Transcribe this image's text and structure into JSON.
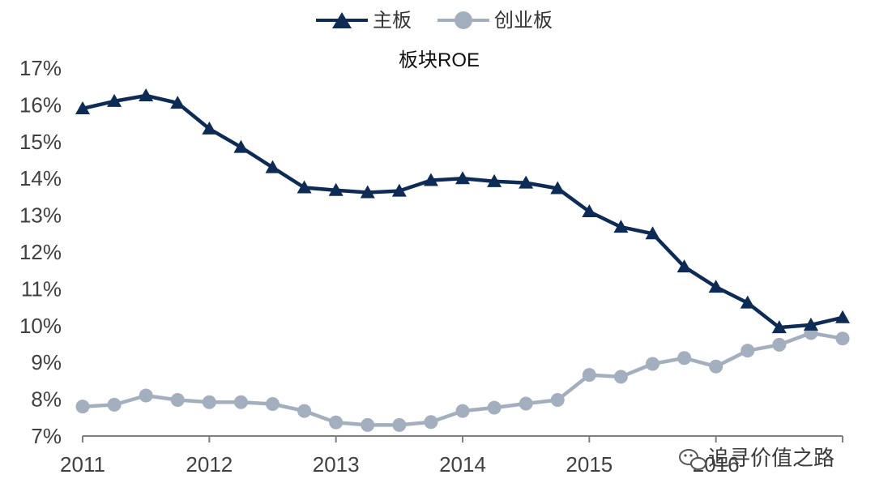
{
  "chart_data": {
    "type": "line",
    "title": "板块ROE",
    "xlabel": "",
    "ylabel": "",
    "x_ticks": [
      "2011",
      "2012",
      "2013",
      "2014",
      "2015",
      "2016"
    ],
    "y_ticks": [
      "7%",
      "8%",
      "9%",
      "10%",
      "11%",
      "12%",
      "13%",
      "14%",
      "15%",
      "16%",
      "17%"
    ],
    "ylim": [
      7,
      17
    ],
    "xlim": [
      2011.0,
      2017.0
    ],
    "legend_position": "top-center",
    "grid": false,
    "series": [
      {
        "name": "主板",
        "color": "#0d2b55",
        "marker": "triangle",
        "points": [
          [
            2011.0,
            15.9
          ],
          [
            2011.25,
            16.1
          ],
          [
            2011.5,
            16.25
          ],
          [
            2011.75,
            16.05
          ],
          [
            2012.0,
            15.35
          ],
          [
            2012.25,
            14.85
          ],
          [
            2012.5,
            14.3
          ],
          [
            2012.75,
            13.75
          ],
          [
            2013.0,
            13.68
          ],
          [
            2013.25,
            13.62
          ],
          [
            2013.5,
            13.66
          ],
          [
            2013.75,
            13.95
          ],
          [
            2014.0,
            14.0
          ],
          [
            2014.25,
            13.92
          ],
          [
            2014.5,
            13.88
          ],
          [
            2014.75,
            13.73
          ],
          [
            2015.0,
            13.1
          ],
          [
            2015.25,
            12.68
          ],
          [
            2015.5,
            12.5
          ],
          [
            2015.75,
            11.6
          ],
          [
            2016.0,
            11.05
          ],
          [
            2016.25,
            10.62
          ],
          [
            2016.5,
            9.95
          ],
          [
            2016.75,
            10.02
          ],
          [
            2017.0,
            10.22
          ]
        ]
      },
      {
        "name": "创业板",
        "color": "#a3afbe",
        "marker": "circle",
        "points": [
          [
            2011.0,
            7.8
          ],
          [
            2011.25,
            7.85
          ],
          [
            2011.5,
            8.1
          ],
          [
            2011.75,
            7.98
          ],
          [
            2012.0,
            7.92
          ],
          [
            2012.25,
            7.92
          ],
          [
            2012.5,
            7.87
          ],
          [
            2012.75,
            7.68
          ],
          [
            2013.0,
            7.37
          ],
          [
            2013.25,
            7.3
          ],
          [
            2013.5,
            7.3
          ],
          [
            2013.75,
            7.38
          ],
          [
            2014.0,
            7.68
          ],
          [
            2014.25,
            7.77
          ],
          [
            2014.5,
            7.88
          ],
          [
            2014.75,
            7.98
          ],
          [
            2015.0,
            8.66
          ],
          [
            2015.25,
            8.61
          ],
          [
            2015.5,
            8.96
          ],
          [
            2015.75,
            9.12
          ],
          [
            2016.0,
            8.89
          ],
          [
            2016.25,
            9.32
          ],
          [
            2016.5,
            9.48
          ],
          [
            2016.75,
            9.8
          ],
          [
            2017.0,
            9.65
          ]
        ]
      }
    ]
  },
  "watermark": {
    "icon": "wechat-icon",
    "text": "追寻价值之路"
  }
}
